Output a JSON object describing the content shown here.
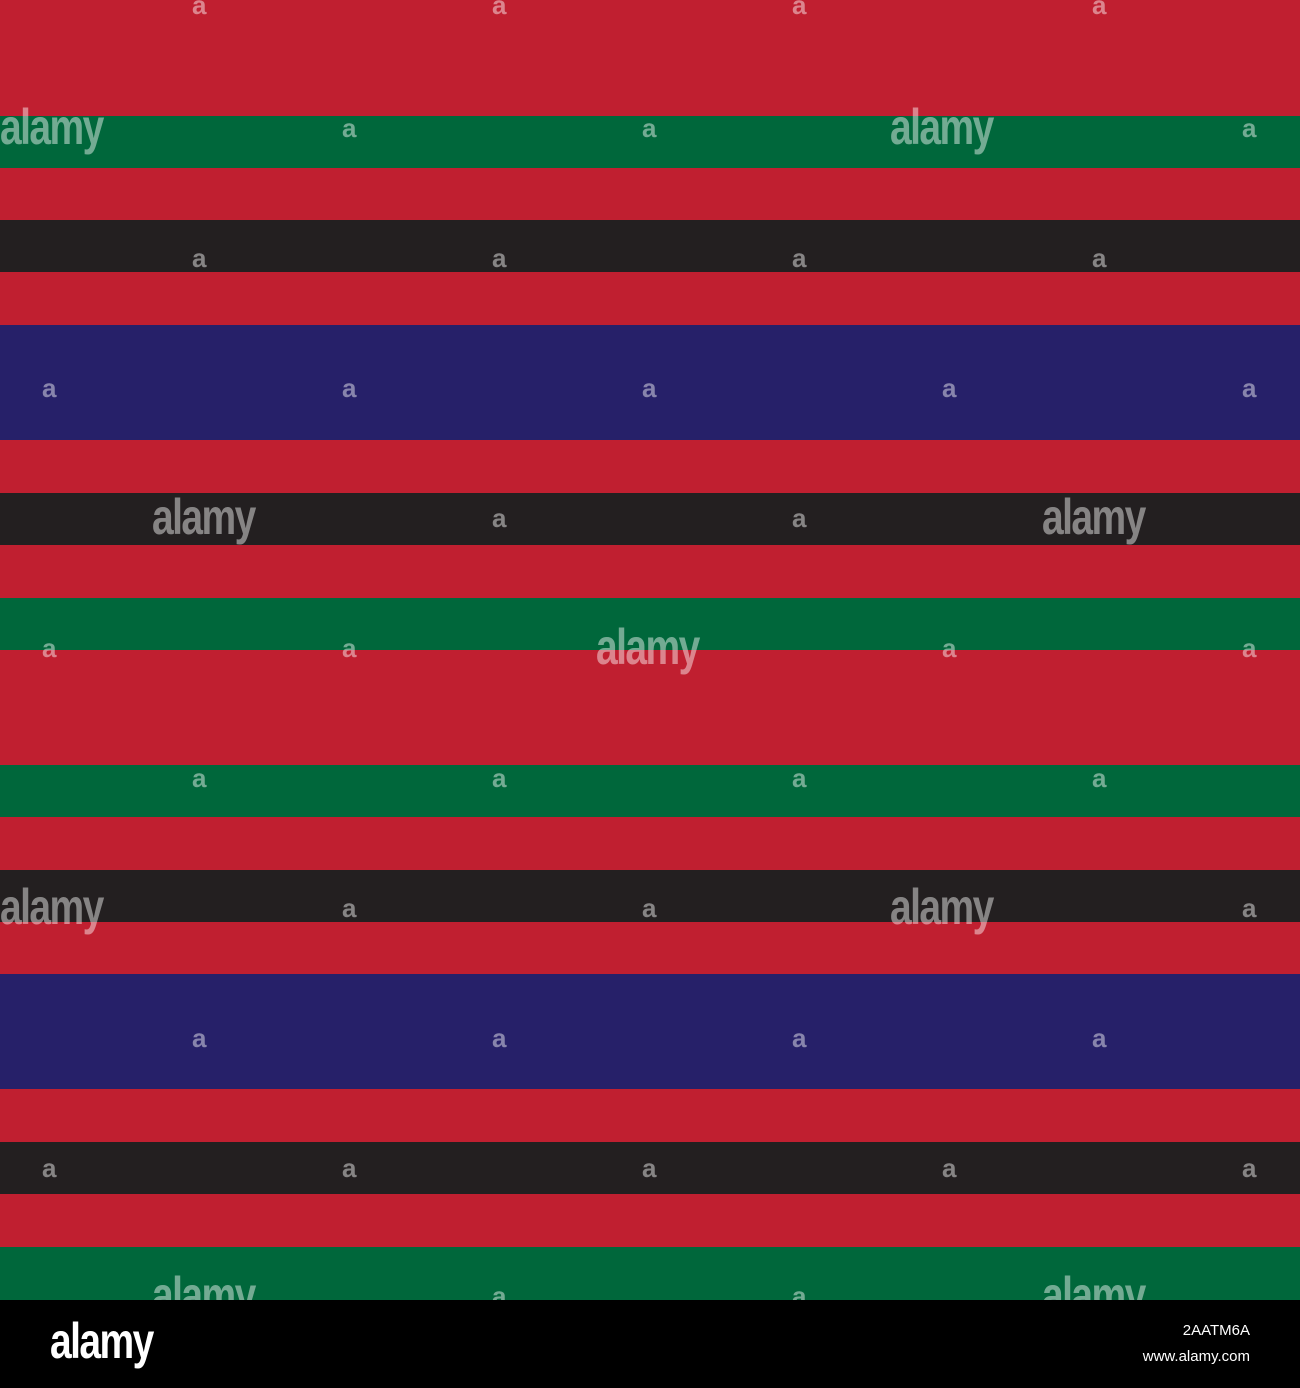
{
  "pattern": {
    "colors": {
      "red": "#c01f30",
      "green": "#00673b",
      "black": "#231f20",
      "navy": "#262069"
    },
    "stripes": [
      "red",
      "green",
      "red",
      "black",
      "red",
      "navy",
      "red",
      "black",
      "red",
      "green",
      "red",
      "green",
      "red",
      "black",
      "red",
      "navy",
      "red",
      "black",
      "red",
      "green"
    ]
  },
  "watermark": {
    "word": "alamy",
    "glyph": "a"
  },
  "footer": {
    "logo": "alamy",
    "image_id": "2AATM6A",
    "url": "www.alamy.com"
  }
}
